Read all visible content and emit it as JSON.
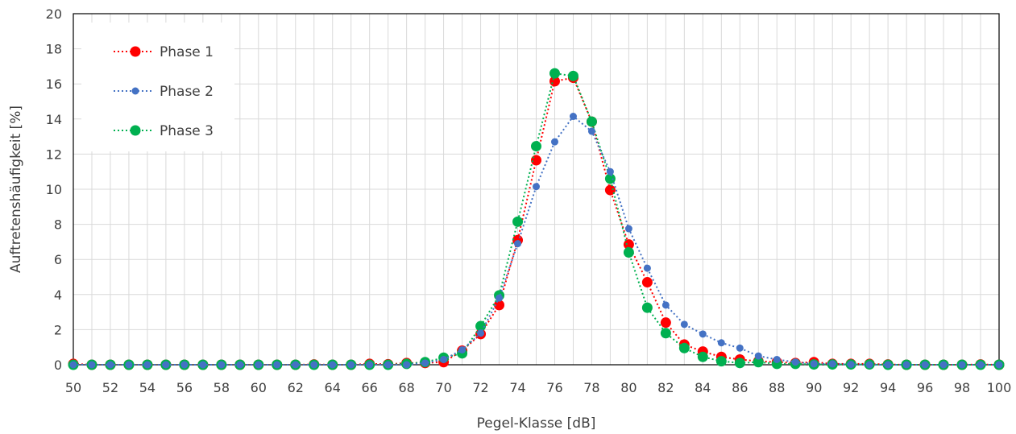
{
  "chart_data": {
    "type": "line",
    "xlabel": "Pegel-Klasse [dB]",
    "ylabel": "Auftretenshäufigkeit [%]",
    "xlim": [
      50,
      100
    ],
    "ylim": [
      0,
      20
    ],
    "x_ticks": [
      "50",
      "52",
      "54",
      "56",
      "58",
      "60",
      "62",
      "64",
      "66",
      "68",
      "70",
      "72",
      "74",
      "76",
      "78",
      "80",
      "82",
      "84",
      "86",
      "88",
      "90",
      "92",
      "94",
      "96",
      "98",
      "100"
    ],
    "y_ticks": [
      "0",
      "2",
      "4",
      "6",
      "8",
      "10",
      "12",
      "14",
      "16",
      "18",
      "20"
    ],
    "grid": true,
    "legend_position": "top-left",
    "x": [
      50,
      51,
      52,
      53,
      54,
      55,
      56,
      57,
      58,
      59,
      60,
      61,
      62,
      63,
      64,
      65,
      66,
      67,
      68,
      69,
      70,
      71,
      72,
      73,
      74,
      75,
      76,
      77,
      78,
      79,
      80,
      81,
      82,
      83,
      84,
      85,
      86,
      87,
      88,
      89,
      90,
      91,
      92,
      93,
      94,
      95,
      96,
      97,
      98,
      99,
      100
    ],
    "series": [
      {
        "name": "Phase 1",
        "color": "#ff0000",
        "marker": "large-circle",
        "values": [
          0.05,
          0,
          0,
          0,
          0,
          0,
          0,
          0,
          0,
          0,
          0,
          0,
          0,
          0.02,
          0,
          0,
          0.05,
          0.03,
          0.1,
          0.1,
          0.15,
          0.8,
          1.75,
          3.4,
          7.1,
          11.65,
          16.15,
          16.35,
          13.85,
          9.95,
          6.85,
          4.7,
          2.4,
          1.15,
          0.75,
          0.45,
          0.3,
          0.2,
          0.15,
          0.1,
          0.15,
          0.05,
          0.05,
          0.05,
          0.02,
          0,
          0,
          0,
          0,
          0.02,
          0
        ]
      },
      {
        "name": "Phase 2",
        "color": "#4472c4",
        "marker": "small-circle",
        "values": [
          0,
          0,
          0,
          0,
          0,
          0,
          0,
          0,
          0,
          0,
          0,
          0,
          0,
          0,
          0,
          0,
          0,
          0,
          0,
          0.1,
          0.3,
          0.85,
          1.8,
          3.8,
          6.9,
          10.15,
          12.7,
          14.15,
          13.3,
          11.0,
          7.75,
          5.5,
          3.4,
          2.3,
          1.75,
          1.25,
          0.95,
          0.5,
          0.3,
          0.15,
          0.05,
          0.05,
          0.02,
          0,
          0,
          0,
          0,
          0,
          0,
          0,
          0
        ]
      },
      {
        "name": "Phase 3",
        "color": "#00b050",
        "marker": "large-circle",
        "values": [
          0,
          0,
          0,
          0,
          0,
          0,
          0,
          0,
          0,
          0,
          0,
          0,
          0,
          0,
          0,
          0,
          0,
          0,
          0.05,
          0.15,
          0.4,
          0.65,
          2.2,
          3.95,
          8.15,
          12.45,
          16.6,
          16.45,
          13.85,
          10.6,
          6.4,
          3.25,
          1.8,
          0.95,
          0.45,
          0.2,
          0.1,
          0.15,
          0.05,
          0.05,
          0.02,
          0.02,
          0.02,
          0.02,
          0,
          0,
          0,
          0,
          0,
          0,
          0
        ]
      }
    ]
  }
}
